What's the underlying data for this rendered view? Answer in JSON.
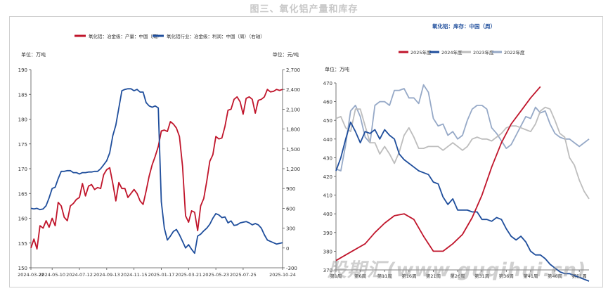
{
  "page_title": "图三、氧化铝产量和库存",
  "watermark": "股期汇(www.guqihui.cn)",
  "chart_data": [
    {
      "type": "line",
      "legend": [
        "氧化铝：冶金级：产量：中国（周）",
        "氧化铝行业：冶金级：利润：中国（周）（右轴）"
      ],
      "ylabel_left": "单位：万吨",
      "ylabel_right": "单位：元/吨",
      "ylim_left": [
        150,
        190
      ],
      "ylim_right": [
        -300,
        2700
      ],
      "yticks_left": [
        150,
        155,
        160,
        165,
        170,
        175,
        180,
        185,
        190
      ],
      "yticks_right": [
        -300,
        0,
        300,
        600,
        900,
        1200,
        1500,
        1800,
        2100,
        2400,
        2700
      ],
      "xlim": [
        "2024-03-22",
        "2025-10-24"
      ],
      "xticks": [
        "2024-03-22",
        "2024-05-10",
        "2024-07-12",
        "2024-09-13",
        "2024-11-15",
        "2025-01-17",
        "2025-03-21",
        "2025-05-23",
        "2025-07-25",
        "2025-10-24"
      ],
      "colors": [
        "#c0152b",
        "#1f4e9c"
      ],
      "series": [
        {
          "name": "氧化铝：冶金级：产量：中国（周）",
          "axis": "left",
          "x": [
            "2024-03-22",
            "2024-03-29",
            "2024-04-05",
            "2024-04-12",
            "2024-04-19",
            "2024-04-26",
            "2024-05-03",
            "2024-05-10",
            "2024-05-17",
            "2024-05-24",
            "2024-05-31",
            "2024-06-07",
            "2024-06-14",
            "2024-06-21",
            "2024-06-28",
            "2024-07-05",
            "2024-07-12",
            "2024-07-19",
            "2024-07-26",
            "2024-08-02",
            "2024-08-09",
            "2024-08-16",
            "2024-08-23",
            "2024-08-30",
            "2024-09-06",
            "2024-09-13",
            "2024-09-20",
            "2024-09-27",
            "2024-10-04",
            "2024-10-11",
            "2024-10-18",
            "2024-10-25",
            "2024-11-01",
            "2024-11-08",
            "2024-11-15",
            "2024-11-22",
            "2024-11-29",
            "2024-12-06",
            "2024-12-13",
            "2024-12-20",
            "2024-12-27",
            "2025-01-03",
            "2025-01-10",
            "2025-01-17",
            "2025-01-24",
            "2025-01-31",
            "2025-02-07",
            "2025-02-14",
            "2025-02-21",
            "2025-02-28",
            "2025-03-07",
            "2025-03-14",
            "2025-03-21",
            "2025-03-28",
            "2025-04-04",
            "2025-04-11",
            "2025-04-18",
            "2025-04-25",
            "2025-05-02",
            "2025-05-09",
            "2025-05-16",
            "2025-05-23",
            "2025-05-30",
            "2025-06-06",
            "2025-06-13",
            "2025-06-20",
            "2025-06-27",
            "2025-07-04",
            "2025-07-11",
            "2025-07-18",
            "2025-07-25",
            "2025-08-01",
            "2025-08-08",
            "2025-08-15",
            "2025-08-22",
            "2025-08-29",
            "2025-09-05",
            "2025-09-12",
            "2025-09-19",
            "2025-09-26",
            "2025-10-03",
            "2025-10-10",
            "2025-10-17",
            "2025-10-24"
          ],
          "values": [
            154.0,
            155.8,
            153.8,
            158.5,
            158.0,
            159.5,
            158.2,
            160.0,
            158.5,
            163.2,
            162.5,
            160.2,
            159.5,
            162.5,
            163.0,
            163.8,
            164.2,
            167.0,
            164.5,
            166.5,
            166.8,
            165.8,
            166.2,
            166.0,
            168.8,
            169.8,
            170.2,
            167.0,
            163.5,
            167.2,
            166.0,
            166.0,
            164.2,
            165.0,
            165.8,
            165.0,
            163.5,
            162.8,
            165.5,
            168.5,
            170.8,
            172.5,
            174.5,
            177.6,
            177.8,
            177.5,
            179.5,
            179.0,
            178.2,
            176.5,
            170.5,
            160.5,
            159.2,
            161.5,
            161.2,
            157.5,
            162.5,
            164.0,
            167.5,
            171.5,
            172.8,
            176.5,
            176.0,
            176.2,
            178.5,
            181.8,
            182.0,
            184.0,
            184.5,
            183.5,
            181.0,
            184.2,
            184.5,
            184.0,
            181.2,
            183.8,
            184.0,
            184.5,
            186.0,
            185.5,
            185.6,
            186.0,
            185.8,
            186.0
          ]
        },
        {
          "name": "氧化铝行业：冶金级：利润：中国（周）（右轴）",
          "axis": "right",
          "x": [
            "2024-03-22",
            "2024-03-29",
            "2024-04-05",
            "2024-04-12",
            "2024-04-19",
            "2024-04-26",
            "2024-05-03",
            "2024-05-10",
            "2024-05-17",
            "2024-05-24",
            "2024-05-31",
            "2024-06-07",
            "2024-06-14",
            "2024-06-21",
            "2024-06-28",
            "2024-07-05",
            "2024-07-12",
            "2024-07-19",
            "2024-07-26",
            "2024-08-02",
            "2024-08-09",
            "2024-08-16",
            "2024-08-23",
            "2024-08-30",
            "2024-09-06",
            "2024-09-13",
            "2024-09-20",
            "2024-09-27",
            "2024-10-04",
            "2024-10-11",
            "2024-10-18",
            "2024-10-25",
            "2024-11-01",
            "2024-11-08",
            "2024-11-15",
            "2024-11-22",
            "2024-11-29",
            "2024-12-06",
            "2024-12-13",
            "2024-12-20",
            "2024-12-27",
            "2025-01-03",
            "2025-01-10",
            "2025-01-17",
            "2025-01-24",
            "2025-01-31",
            "2025-02-07",
            "2025-02-14",
            "2025-02-21",
            "2025-02-28",
            "2025-03-07",
            "2025-03-14",
            "2025-03-21",
            "2025-03-28",
            "2025-04-04",
            "2025-04-11",
            "2025-04-18",
            "2025-04-25",
            "2025-05-02",
            "2025-05-09",
            "2025-05-16",
            "2025-05-23",
            "2025-05-30",
            "2025-06-06",
            "2025-06-13",
            "2025-06-20",
            "2025-06-27",
            "2025-07-04",
            "2025-07-11",
            "2025-07-18",
            "2025-07-25",
            "2025-08-01",
            "2025-08-08",
            "2025-08-15",
            "2025-08-22",
            "2025-08-29",
            "2025-09-05",
            "2025-09-12",
            "2025-09-19",
            "2025-09-26",
            "2025-10-03",
            "2025-10-10",
            "2025-10-17",
            "2025-10-24"
          ],
          "values": [
            600,
            590,
            600,
            580,
            590,
            640,
            760,
            900,
            920,
            1050,
            1160,
            1160,
            1170,
            1170,
            1140,
            1140,
            1120,
            1140,
            1140,
            1150,
            1150,
            1160,
            1160,
            1200,
            1260,
            1320,
            1440,
            1700,
            1860,
            2120,
            2380,
            2400,
            2410,
            2410,
            2380,
            2400,
            2360,
            2360,
            2200,
            2150,
            2130,
            2150,
            2120,
            700,
            300,
            120,
            180,
            250,
            280,
            200,
            100,
            0,
            50,
            -20,
            -80,
            180,
            210,
            260,
            300,
            360,
            450,
            520,
            500,
            460,
            470,
            380,
            410,
            340,
            350,
            380,
            390,
            400,
            380,
            350,
            370,
            350,
            300,
            200,
            120,
            100,
            80,
            60,
            70,
            80
          ]
        }
      ]
    },
    {
      "type": "line",
      "title": "氧化铝：库存：中国（周）",
      "legend": [
        "2025年度",
        "2024年度",
        "2023年度",
        "2022年度"
      ],
      "ylabel": "单位：万吨",
      "ylim": [
        370,
        470
      ],
      "yticks": [
        370,
        380,
        390,
        400,
        410,
        420,
        430,
        440,
        450,
        460,
        470
      ],
      "xlim": [
        1,
        53
      ],
      "xticks": [
        "第1周",
        "第6周",
        "第11周",
        "第16周",
        "第21周",
        "第26周",
        "第31周",
        "第36周",
        "第41周",
        "第46周",
        "第51周"
      ],
      "colors": [
        "#c0152b",
        "#1f4e9c",
        "#bdbdbd",
        "#96a9c7"
      ],
      "series": [
        {
          "name": "2025年度",
          "x": [
            1,
            3,
            5,
            7,
            9,
            11,
            13,
            15,
            17,
            19,
            21,
            23,
            25,
            27,
            29,
            31,
            33,
            35,
            37,
            39,
            41,
            43
          ],
          "values": [
            375,
            378,
            381,
            384,
            390,
            395,
            399,
            400,
            397,
            388,
            380,
            380,
            384,
            389,
            398,
            410,
            425,
            438,
            448,
            455,
            462,
            468
          ]
        },
        {
          "name": "2024年度",
          "x": [
            1,
            2,
            3,
            4,
            5,
            6,
            7,
            8,
            9,
            10,
            11,
            12,
            13,
            14,
            15,
            16,
            17,
            18,
            19,
            20,
            21,
            22,
            23,
            24,
            25,
            26,
            27,
            28,
            29,
            30,
            31,
            32,
            33,
            34,
            35,
            36,
            37,
            38,
            39,
            40,
            41,
            42,
            43,
            44,
            45,
            46,
            47,
            48,
            49,
            50,
            51,
            52,
            53
          ],
          "values": [
            423,
            430,
            440,
            449,
            444,
            438,
            444,
            443,
            445,
            440,
            445,
            442,
            440,
            432,
            429,
            427,
            425,
            423,
            422,
            421,
            417,
            416,
            409,
            405,
            408,
            402,
            402,
            402,
            401,
            401,
            397,
            397,
            396,
            398,
            397,
            392,
            388,
            386,
            388,
            385,
            380,
            378,
            378,
            376,
            373,
            371,
            369,
            368,
            368,
            367,
            366,
            365,
            364
          ]
        },
        {
          "name": "2023年度",
          "x": [
            1,
            2,
            3,
            4,
            5,
            6,
            7,
            8,
            9,
            10,
            11,
            12,
            13,
            14,
            15,
            16,
            17,
            18,
            19,
            20,
            21,
            22,
            23,
            24,
            25,
            26,
            27,
            28,
            29,
            30,
            31,
            32,
            33,
            34,
            35,
            36,
            37,
            38,
            39,
            40,
            41,
            42,
            43,
            44,
            45,
            46,
            47,
            48,
            49,
            50,
            51,
            52,
            53
          ],
          "values": [
            451,
            452,
            446,
            444,
            456,
            456,
            447,
            438,
            438,
            432,
            436,
            432,
            427,
            433,
            442,
            446,
            441,
            435,
            435,
            436,
            436,
            436,
            434,
            436,
            438,
            436,
            434,
            436,
            440,
            441,
            440,
            440,
            439,
            441,
            443,
            446,
            447,
            447,
            446,
            445,
            444,
            448,
            455,
            457,
            456,
            450,
            443,
            441,
            430,
            426,
            418,
            412,
            408
          ]
        },
        {
          "name": "2022年度",
          "x": [
            1,
            2,
            3,
            4,
            5,
            6,
            7,
            8,
            9,
            10,
            11,
            12,
            13,
            14,
            15,
            16,
            17,
            18,
            19,
            20,
            21,
            22,
            23,
            24,
            25,
            26,
            27,
            28,
            29,
            30,
            31,
            32,
            33,
            34,
            35,
            36,
            37,
            38,
            39,
            40,
            41,
            42,
            43,
            44,
            45,
            46,
            47,
            48,
            49,
            50,
            51,
            52,
            53
          ],
          "values": [
            424,
            423,
            437,
            455,
            458,
            452,
            441,
            438,
            458,
            460,
            460,
            458,
            466,
            466,
            467,
            462,
            462,
            459,
            469,
            465,
            451,
            447,
            448,
            442,
            444,
            440,
            442,
            450,
            456,
            458,
            458,
            456,
            446,
            443,
            439,
            435,
            437,
            442,
            447,
            452,
            451,
            457,
            454,
            455,
            448,
            443,
            441,
            440,
            440,
            438,
            436,
            438,
            440
          ]
        }
      ]
    }
  ]
}
